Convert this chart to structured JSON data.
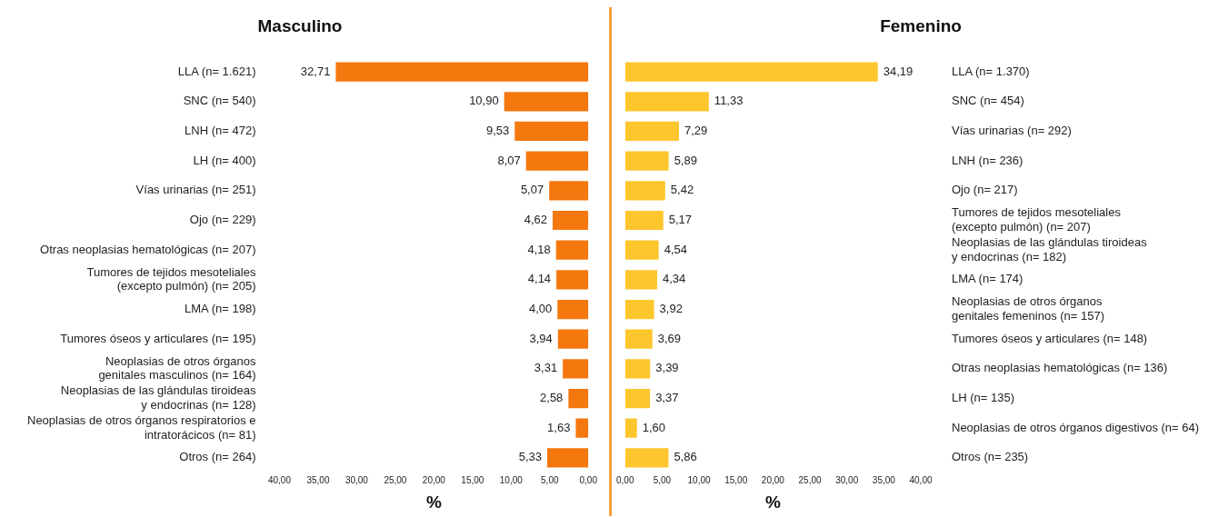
{
  "chart_data": [
    {
      "type": "bar",
      "orientation": "horizontal",
      "title": "Masculino",
      "xlabel": "%",
      "categories": [
        "LLA (n= 1.621)",
        "SNC (n= 540)",
        "LNH (n= 472)",
        "LH (n= 400)",
        "Vías urinarias (n= 251)",
        "Ojo (n= 229)",
        "Otras neoplasias hematológicas (n= 207)",
        "Tumores de tejidos mesoteliales\n(excepto pulmón) (n= 205)",
        "LMA (n= 198)",
        "Tumores óseos y articulares (n= 195)",
        "Neoplasias de otros órganos\ngenitales masculinos (n= 164)",
        "Neoplasias de las glándulas tiroideas\ny endocrinas (n= 128)",
        "Neoplasias de otros órganos respiratorios e\nintratorácicos (n= 81)",
        "Otros (n= 264)"
      ],
      "values": [
        32.71,
        10.9,
        9.53,
        8.07,
        5.07,
        4.62,
        4.18,
        4.14,
        4.0,
        3.94,
        3.31,
        2.58,
        1.63,
        5.33
      ],
      "value_labels": [
        "32,71",
        "10,90",
        "9,53",
        "8,07",
        "5,07",
        "4,62",
        "4,18",
        "4,14",
        "4,00",
        "3,94",
        "3,31",
        "2,58",
        "1,63",
        "5,33"
      ],
      "color": "#f5780f",
      "xlim": [
        40,
        0
      ],
      "xticks": [
        {
          "value": 40,
          "label": "40,00"
        },
        {
          "value": 35,
          "label": "35,00"
        },
        {
          "value": 30,
          "label": "30,00"
        },
        {
          "value": 25,
          "label": "25,00"
        },
        {
          "value": 20,
          "label": "20,00"
        },
        {
          "value": 15,
          "label": "15,00"
        },
        {
          "value": 10,
          "label": "10,00"
        },
        {
          "value": 5,
          "label": "5,00"
        },
        {
          "value": 0,
          "label": "0,00"
        }
      ],
      "grid": false,
      "legend": false
    },
    {
      "type": "bar",
      "orientation": "horizontal",
      "title": "Femenino",
      "xlabel": "%",
      "categories": [
        "LLA (n= 1.370)",
        "SNC (n= 454)",
        "Vías urinarias (n= 292)",
        "LNH (n= 236)",
        "Ojo (n= 217)",
        "Tumores de tejidos mesoteliales\n(excepto pulmón) (n= 207)",
        "Neoplasias de las glándulas tiroideas\ny endocrinas (n= 182)",
        "LMA (n= 174)",
        "Neoplasias de otros órganos\ngenitales femeninos (n= 157)",
        "Tumores óseos y articulares (n= 148)",
        "Otras neoplasias hematológicas (n= 136)",
        "LH (n= 135)",
        "Neoplasias de otros órganos digestivos (n= 64)",
        "Otros (n= 235)"
      ],
      "values": [
        34.19,
        11.33,
        7.29,
        5.89,
        5.42,
        5.17,
        4.54,
        4.34,
        3.92,
        3.69,
        3.39,
        3.37,
        1.6,
        5.86
      ],
      "value_labels": [
        "34,19",
        "11,33",
        "7,29",
        "5,89",
        "5,42",
        "5,17",
        "4,54",
        "4,34",
        "3,92",
        "3,69",
        "3,39",
        "3,37",
        "1,60",
        "5,86"
      ],
      "color": "#fdc62d",
      "xlim": [
        0,
        40
      ],
      "xticks": [
        {
          "value": 0,
          "label": "0,00"
        },
        {
          "value": 5,
          "label": "5,00"
        },
        {
          "value": 10,
          "label": "10,00"
        },
        {
          "value": 15,
          "label": "15,00"
        },
        {
          "value": 20,
          "label": "20,00"
        },
        {
          "value": 25,
          "label": "25,00"
        },
        {
          "value": 30,
          "label": "30,00"
        },
        {
          "value": 35,
          "label": "35,00"
        },
        {
          "value": 40,
          "label": "40,00"
        }
      ],
      "grid": false,
      "legend": false
    }
  ]
}
